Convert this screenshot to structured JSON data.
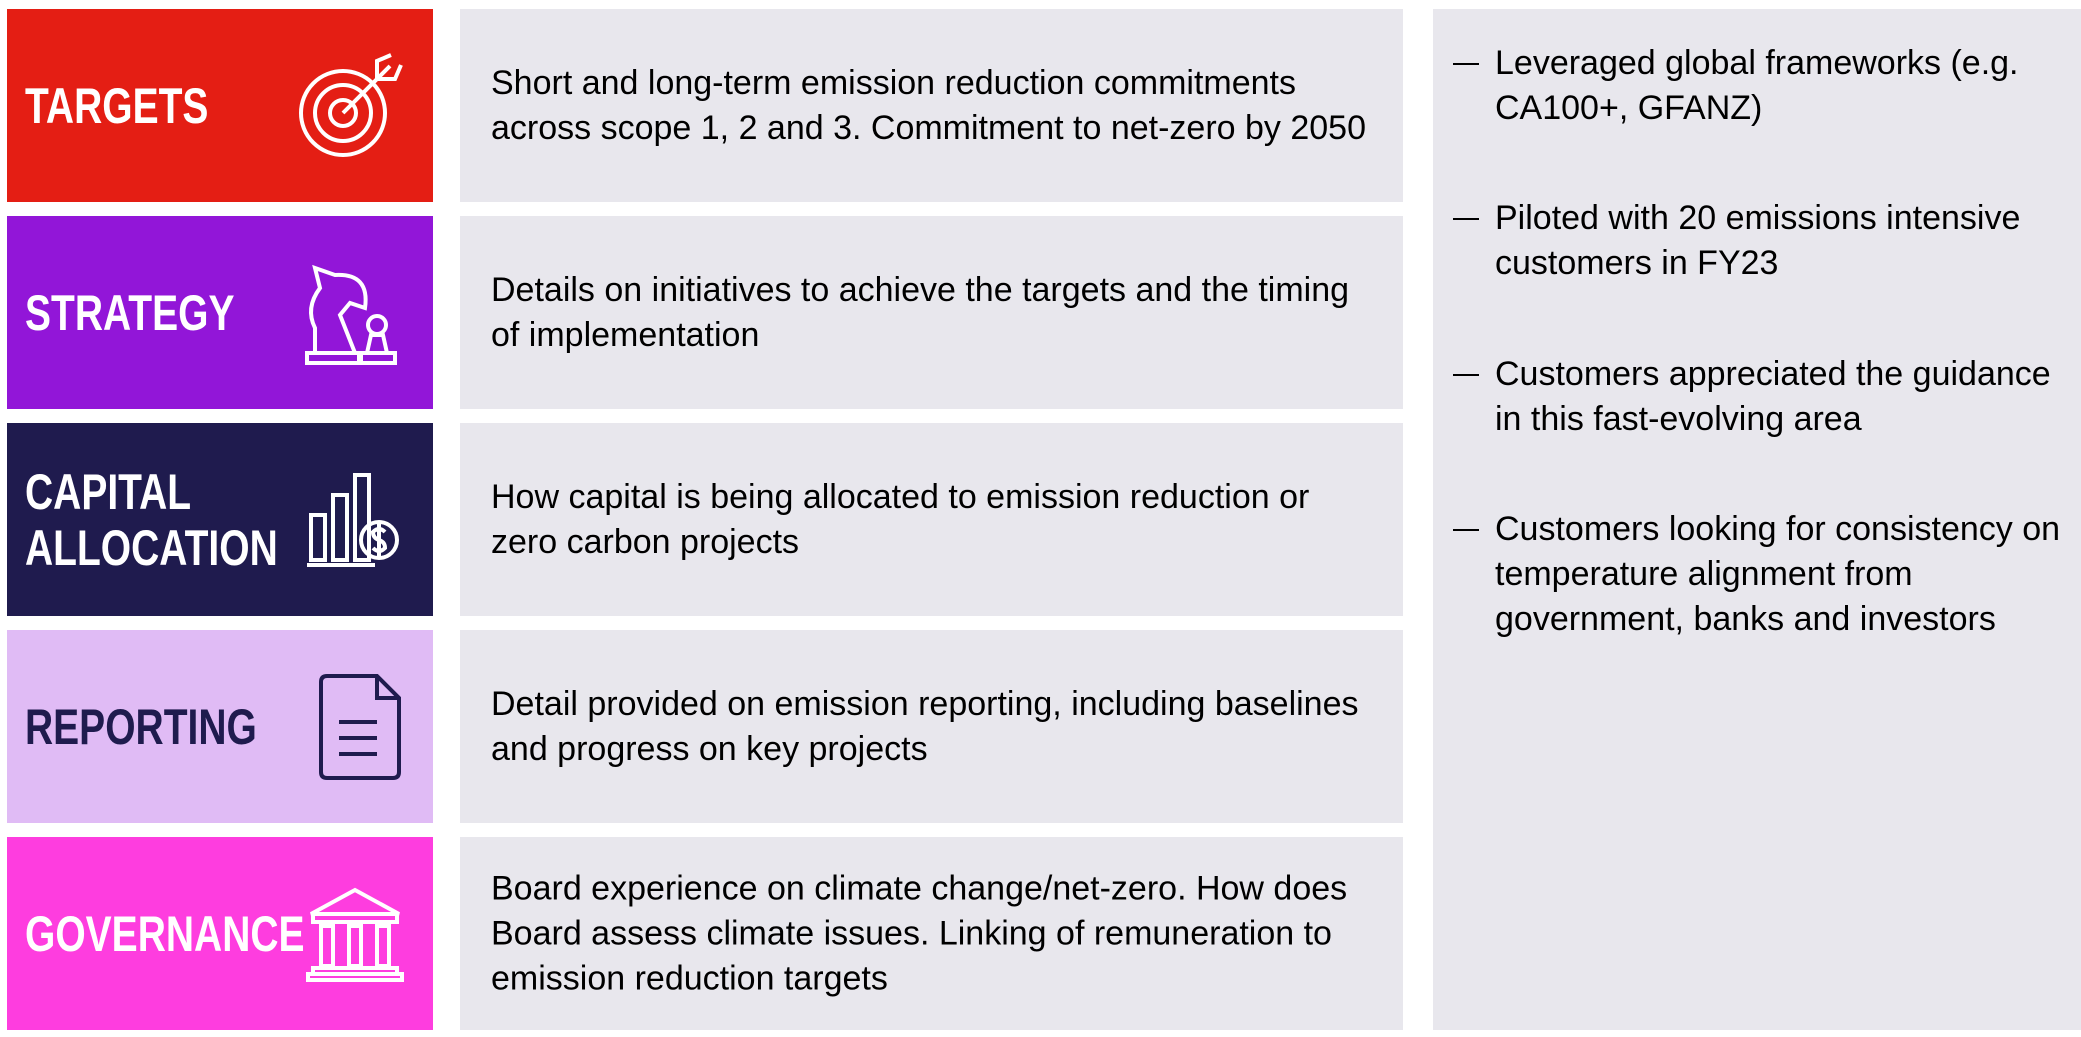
{
  "rows": [
    {
      "label": "TARGETS",
      "description": "Short and long-term emission reduction commitments across scope 1, 2 and 3. Commitment to net-zero by 2050"
    },
    {
      "label": "STRATEGY",
      "description": "Details on initiatives to achieve the targets and the timing of implementation"
    },
    {
      "label": "CAPITAL ALLOCATION",
      "description": "How capital is being allocated to emission reduction or zero carbon projects"
    },
    {
      "label": "REPORTING",
      "description": "Detail provided on emission reporting, including baselines and progress on key projects"
    },
    {
      "label": "GOVERNANCE",
      "description": "Board experience on climate change/net-zero. How does Board assess climate issues. Linking of remuneration to emission reduction targets"
    }
  ],
  "bullets": [
    "Leveraged global frameworks (e.g. CA100+, GFANZ)",
    "Piloted with 20 emissions intensive customers in FY23",
    "Customers appreciated the guidance in this fast-evolving area",
    "Customers looking for consistency on temperature alignment from government, banks and investors"
  ]
}
